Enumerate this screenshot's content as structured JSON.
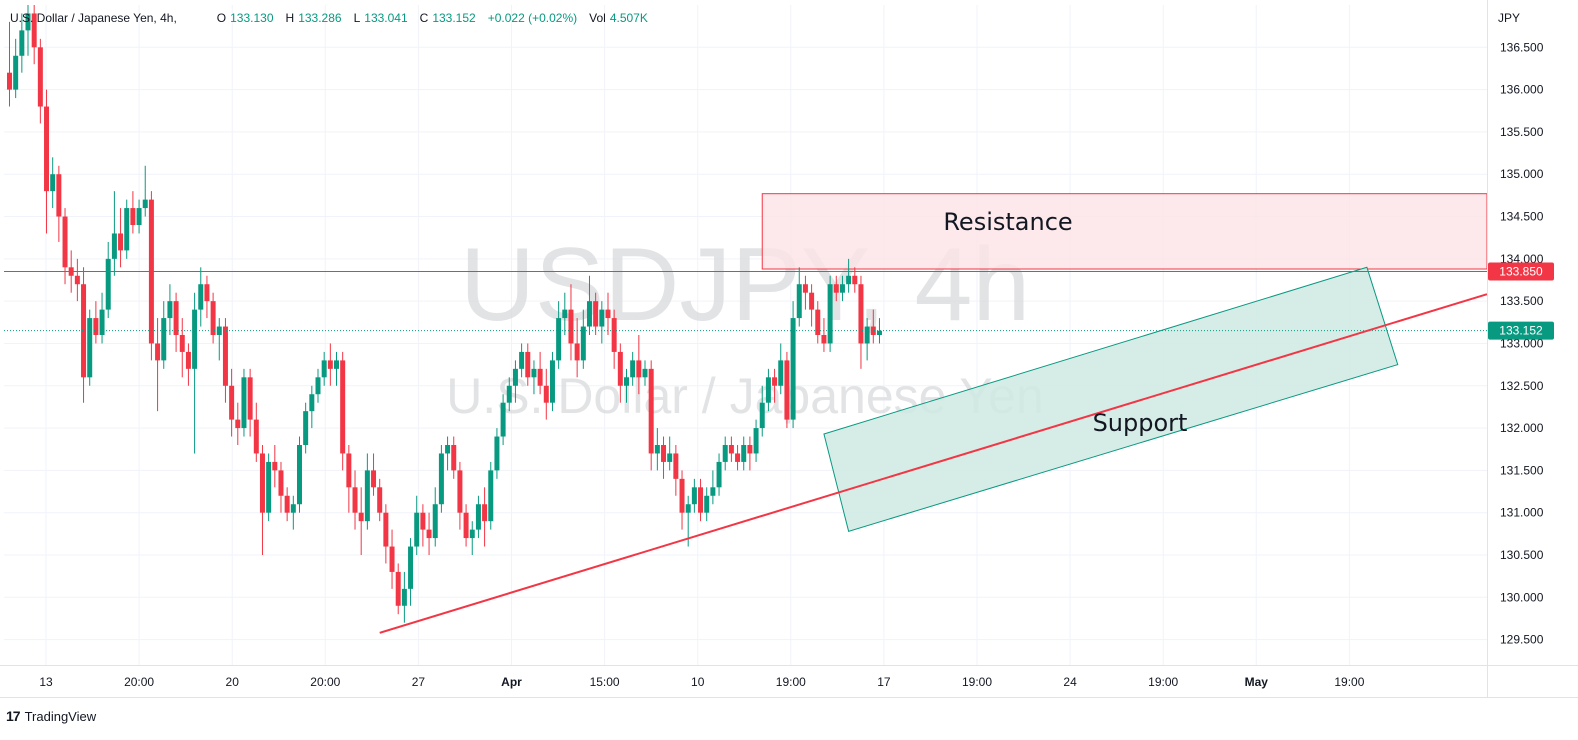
{
  "legend": {
    "symbol": "U.S. Dollar / Japanese Yen, 4h,",
    "o_label": "O",
    "o_value": "133.130",
    "h_label": "H",
    "h_value": "133.286",
    "l_label": "L",
    "l_value": "133.041",
    "c_label": "C",
    "c_value": "133.152",
    "change": "+0.022 (+0.02%)",
    "vol_label": "Vol",
    "vol_value": "4.507K"
  },
  "watermark": {
    "line1": "USDJPY, 4h",
    "line2": "U.S. Dollar / Japanese Yen"
  },
  "currency": "JPY",
  "brand": {
    "logo": "17",
    "name": "TradingView",
    "logo_icon": "tradingview-logo-icon"
  },
  "colors": {
    "up": "#089981",
    "down": "#f23645",
    "resistance_fill": "#fde4e6",
    "support_fill": "#cfeae3"
  },
  "chart_data": {
    "type": "candlestick",
    "y_axis": {
      "range": [
        129.2,
        137.0
      ],
      "ticks": [
        "129.500",
        "130.000",
        "130.500",
        "131.000",
        "131.500",
        "132.000",
        "132.500",
        "133.000",
        "133.500",
        "134.000",
        "134.500",
        "135.000",
        "135.500",
        "136.000",
        "136.500"
      ]
    },
    "x_axis": {
      "ticks": [
        "13",
        "20:00",
        "20",
        "20:00",
        "27",
        "Apr",
        "15:00",
        "10",
        "19:00",
        "17",
        "19:00",
        "24",
        "19:00",
        "May",
        "19:00"
      ],
      "bold_ticks": [
        "Apr",
        "May"
      ]
    },
    "price_labels": [
      {
        "value": 133.85,
        "text": "133.850",
        "color": "#f23645"
      },
      {
        "value": 133.152,
        "text": "133.152",
        "color": "#089981"
      }
    ],
    "annotations": {
      "resistance_label": "Resistance",
      "support_label": "Support",
      "resistance_zone": {
        "from_bar": 122,
        "price_low": 133.88,
        "price_high": 134.77
      },
      "support_line": {
        "from_bar": 60,
        "from_price": 129.58,
        "to_bar": 238,
        "to_price": 133.55
      },
      "support_channel": [
        {
          "bar": 132,
          "price": 131.93
        },
        {
          "bar": 220,
          "price": 133.9
        },
        {
          "bar": 225,
          "price": 132.75
        },
        {
          "bar": 136,
          "price": 130.78
        }
      ]
    },
    "candles": [
      [
        136.2,
        136.8,
        135.8,
        136.0
      ],
      [
        136.0,
        136.6,
        135.9,
        136.4
      ],
      [
        136.4,
        136.9,
        136.2,
        136.7
      ],
      [
        136.7,
        137.0,
        136.4,
        136.9
      ],
      [
        136.9,
        137.0,
        136.3,
        136.5
      ],
      [
        136.5,
        136.6,
        135.6,
        135.8
      ],
      [
        135.8,
        136.0,
        134.3,
        134.8
      ],
      [
        134.8,
        135.2,
        134.6,
        135.0
      ],
      [
        135.0,
        135.1,
        134.2,
        134.5
      ],
      [
        134.5,
        134.6,
        133.7,
        133.9
      ],
      [
        133.9,
        134.1,
        133.6,
        133.8
      ],
      [
        133.8,
        134.0,
        133.5,
        133.7
      ],
      [
        133.7,
        133.9,
        132.3,
        132.6
      ],
      [
        132.6,
        133.4,
        132.5,
        133.3
      ],
      [
        133.3,
        133.5,
        133.0,
        133.1
      ],
      [
        133.1,
        133.6,
        133.0,
        133.4
      ],
      [
        133.4,
        134.2,
        133.3,
        134.0
      ],
      [
        134.0,
        134.8,
        133.8,
        134.3
      ],
      [
        134.3,
        134.6,
        133.9,
        134.1
      ],
      [
        134.1,
        134.7,
        134.0,
        134.6
      ],
      [
        134.6,
        134.8,
        134.3,
        134.4
      ],
      [
        134.4,
        134.7,
        134.3,
        134.6
      ],
      [
        134.6,
        135.1,
        134.5,
        134.7
      ],
      [
        134.7,
        134.8,
        132.8,
        133.0
      ],
      [
        133.0,
        133.3,
        132.2,
        132.8
      ],
      [
        132.8,
        133.5,
        132.7,
        133.3
      ],
      [
        133.3,
        133.7,
        133.1,
        133.5
      ],
      [
        133.5,
        133.6,
        132.9,
        133.1
      ],
      [
        133.1,
        133.3,
        132.6,
        132.9
      ],
      [
        132.9,
        133.0,
        132.5,
        132.7
      ],
      [
        132.7,
        133.6,
        131.7,
        133.4
      ],
      [
        133.4,
        133.9,
        133.2,
        133.7
      ],
      [
        133.7,
        133.8,
        133.3,
        133.5
      ],
      [
        133.5,
        133.6,
        133.0,
        133.1
      ],
      [
        133.1,
        133.3,
        132.8,
        133.2
      ],
      [
        133.2,
        133.3,
        132.3,
        132.5
      ],
      [
        132.5,
        132.7,
        131.9,
        132.1
      ],
      [
        132.1,
        132.3,
        131.8,
        132.0
      ],
      [
        132.0,
        132.7,
        131.9,
        132.6
      ],
      [
        132.6,
        132.7,
        131.9,
        132.1
      ],
      [
        132.1,
        132.3,
        131.6,
        131.7
      ],
      [
        131.7,
        131.8,
        130.5,
        131.0
      ],
      [
        131.0,
        131.7,
        130.9,
        131.6
      ],
      [
        131.6,
        131.8,
        131.3,
        131.5
      ],
      [
        131.5,
        131.6,
        131.0,
        131.2
      ],
      [
        131.2,
        131.3,
        130.9,
        131.0
      ],
      [
        131.0,
        131.2,
        130.8,
        131.1
      ],
      [
        131.1,
        131.9,
        131.0,
        131.8
      ],
      [
        131.8,
        132.3,
        131.7,
        132.2
      ],
      [
        132.2,
        132.5,
        132.0,
        132.4
      ],
      [
        132.4,
        132.7,
        132.3,
        132.6
      ],
      [
        132.6,
        132.9,
        132.5,
        132.8
      ],
      [
        132.8,
        133.0,
        132.5,
        132.7
      ],
      [
        132.7,
        132.9,
        132.5,
        132.8
      ],
      [
        132.8,
        132.9,
        131.5,
        131.7
      ],
      [
        131.7,
        131.8,
        131.0,
        131.3
      ],
      [
        131.3,
        131.5,
        130.8,
        131.0
      ],
      [
        131.0,
        131.3,
        130.5,
        130.9
      ],
      [
        130.9,
        131.7,
        130.8,
        131.5
      ],
      [
        131.5,
        131.7,
        131.2,
        131.3
      ],
      [
        131.3,
        131.4,
        130.9,
        131.0
      ],
      [
        131.0,
        131.1,
        130.4,
        130.6
      ],
      [
        130.6,
        130.8,
        130.1,
        130.3
      ],
      [
        130.3,
        130.4,
        129.8,
        129.9
      ],
      [
        129.9,
        130.3,
        129.7,
        130.1
      ],
      [
        130.1,
        130.7,
        129.9,
        130.6
      ],
      [
        130.6,
        131.2,
        130.5,
        131.0
      ],
      [
        131.0,
        131.1,
        130.6,
        130.8
      ],
      [
        130.8,
        131.0,
        130.5,
        130.7
      ],
      [
        130.7,
        131.3,
        130.6,
        131.1
      ],
      [
        131.1,
        131.8,
        131.0,
        131.7
      ],
      [
        131.7,
        131.9,
        131.5,
        131.8
      ],
      [
        131.8,
        131.9,
        131.4,
        131.5
      ],
      [
        131.5,
        131.6,
        130.8,
        131.0
      ],
      [
        131.0,
        131.1,
        130.6,
        130.7
      ],
      [
        130.7,
        130.9,
        130.5,
        130.8
      ],
      [
        130.8,
        131.2,
        130.7,
        131.1
      ],
      [
        131.1,
        131.3,
        130.6,
        130.9
      ],
      [
        130.9,
        131.6,
        130.8,
        131.5
      ],
      [
        131.5,
        132.0,
        131.4,
        131.9
      ],
      [
        131.9,
        132.4,
        131.8,
        132.3
      ],
      [
        132.3,
        132.6,
        132.2,
        132.5
      ],
      [
        132.5,
        132.8,
        132.3,
        132.7
      ],
      [
        132.7,
        133.0,
        132.6,
        132.9
      ],
      [
        132.9,
        133.0,
        132.5,
        132.6
      ],
      [
        132.6,
        132.8,
        132.4,
        132.7
      ],
      [
        132.7,
        132.9,
        132.4,
        132.5
      ],
      [
        132.5,
        132.7,
        132.1,
        132.3
      ],
      [
        132.3,
        132.9,
        132.2,
        132.8
      ],
      [
        132.8,
        133.5,
        132.7,
        133.3
      ],
      [
        133.3,
        133.6,
        133.1,
        133.4
      ],
      [
        133.4,
        133.7,
        132.8,
        133.0
      ],
      [
        133.0,
        133.3,
        132.6,
        132.8
      ],
      [
        132.8,
        133.4,
        132.7,
        133.2
      ],
      [
        133.2,
        133.8,
        133.1,
        133.5
      ],
      [
        133.5,
        133.6,
        133.1,
        133.2
      ],
      [
        133.2,
        133.5,
        133.0,
        133.4
      ],
      [
        133.4,
        133.6,
        133.1,
        133.3
      ],
      [
        133.3,
        133.4,
        132.7,
        132.9
      ],
      [
        132.9,
        133.0,
        132.3,
        132.5
      ],
      [
        132.5,
        132.7,
        132.3,
        132.6
      ],
      [
        132.6,
        132.9,
        132.5,
        132.8
      ],
      [
        132.8,
        133.1,
        132.4,
        132.6
      ],
      [
        132.6,
        132.8,
        132.5,
        132.7
      ],
      [
        132.7,
        132.8,
        131.5,
        131.7
      ],
      [
        131.7,
        132.0,
        131.5,
        131.8
      ],
      [
        131.8,
        131.9,
        131.4,
        131.6
      ],
      [
        131.6,
        131.9,
        131.5,
        131.7
      ],
      [
        131.7,
        131.8,
        131.2,
        131.4
      ],
      [
        131.4,
        131.5,
        130.8,
        131.0
      ],
      [
        131.0,
        131.2,
        130.6,
        131.1
      ],
      [
        131.1,
        131.4,
        131.0,
        131.3
      ],
      [
        131.3,
        131.4,
        130.9,
        131.0
      ],
      [
        131.0,
        131.3,
        130.9,
        131.2
      ],
      [
        131.2,
        131.5,
        131.1,
        131.3
      ],
      [
        131.3,
        131.7,
        131.2,
        131.6
      ],
      [
        131.6,
        131.9,
        131.5,
        131.8
      ],
      [
        131.8,
        131.9,
        131.6,
        131.7
      ],
      [
        131.7,
        131.8,
        131.5,
        131.6
      ],
      [
        131.6,
        131.9,
        131.5,
        131.8
      ],
      [
        131.8,
        131.9,
        131.5,
        131.7
      ],
      [
        131.7,
        132.1,
        131.6,
        132.0
      ],
      [
        132.0,
        132.5,
        131.9,
        132.3
      ],
      [
        132.3,
        132.7,
        132.2,
        132.6
      ],
      [
        132.6,
        132.7,
        132.3,
        132.5
      ],
      [
        132.5,
        133.0,
        132.4,
        132.8
      ],
      [
        132.8,
        132.9,
        132.0,
        132.1
      ],
      [
        132.1,
        133.5,
        132.0,
        133.3
      ],
      [
        133.3,
        133.9,
        133.2,
        133.7
      ],
      [
        133.7,
        133.8,
        133.4,
        133.6
      ],
      [
        133.6,
        133.7,
        133.2,
        133.4
      ],
      [
        133.4,
        133.5,
        133.0,
        133.1
      ],
      [
        133.1,
        133.3,
        132.9,
        133.0
      ],
      [
        133.0,
        133.8,
        132.9,
        133.7
      ],
      [
        133.7,
        133.8,
        133.5,
        133.6
      ],
      [
        133.6,
        133.8,
        133.5,
        133.7
      ],
      [
        133.7,
        134.0,
        133.6,
        133.8
      ],
      [
        133.8,
        133.9,
        133.6,
        133.7
      ],
      [
        133.7,
        133.8,
        132.7,
        133.0
      ],
      [
        133.0,
        133.3,
        132.8,
        133.2
      ],
      [
        133.2,
        133.4,
        133.0,
        133.1
      ],
      [
        133.1,
        133.3,
        133.0,
        133.15
      ]
    ]
  }
}
